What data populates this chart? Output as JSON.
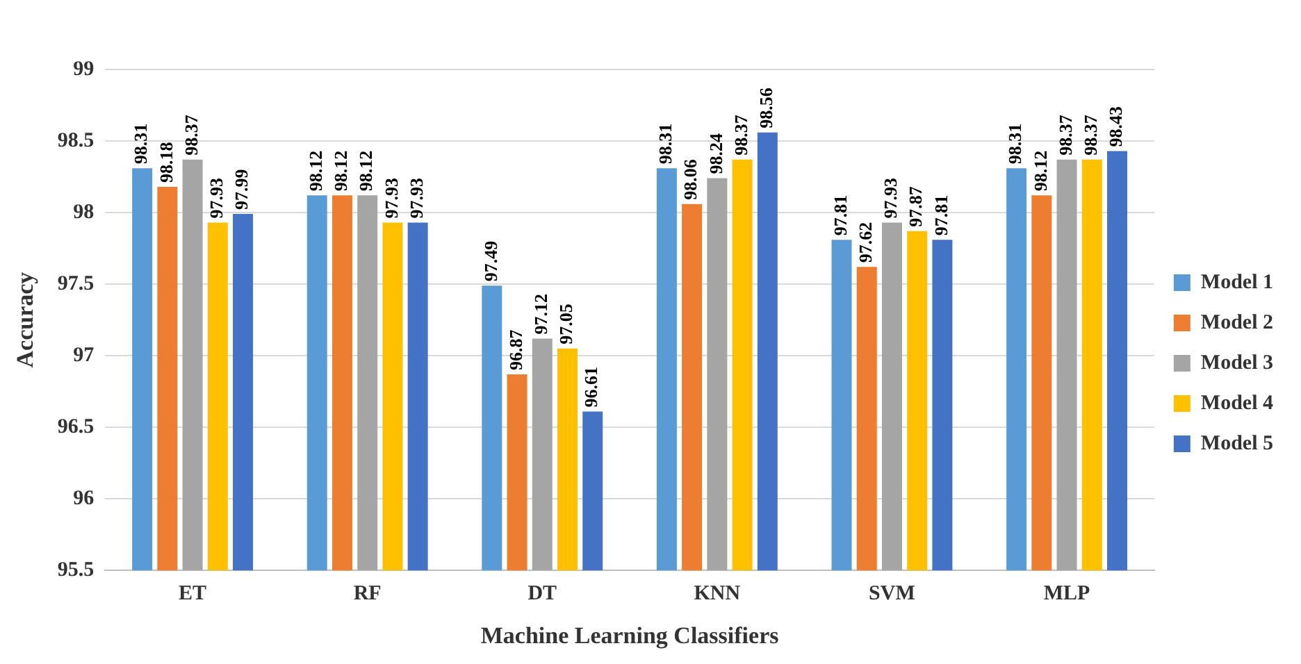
{
  "chart_data": {
    "type": "bar",
    "xlabel": "Machine Learning Classifiers",
    "ylabel": "Accuracy",
    "categories": [
      "ET",
      "RF",
      "DT",
      "KNN",
      "SVM",
      "MLP"
    ],
    "series": [
      {
        "name": "Model 1",
        "color": "#5b9bd5",
        "values": [
          98.31,
          98.12,
          97.49,
          98.31,
          97.81,
          98.31
        ]
      },
      {
        "name": "Model 2",
        "color": "#ed7d31",
        "values": [
          98.18,
          98.12,
          96.87,
          98.06,
          97.62,
          98.12
        ]
      },
      {
        "name": "Model 3",
        "color": "#a5a5a5",
        "values": [
          98.37,
          98.12,
          97.12,
          98.24,
          97.93,
          98.37
        ]
      },
      {
        "name": "Model 4",
        "color": "#ffc000",
        "values": [
          97.93,
          97.93,
          97.05,
          98.37,
          97.87,
          98.37
        ]
      },
      {
        "name": "Model 5",
        "color": "#4472c4",
        "values": [
          97.99,
          97.93,
          96.61,
          98.56,
          97.81,
          98.43
        ]
      }
    ],
    "ylim": [
      95.5,
      99
    ],
    "yticks": [
      95.5,
      96,
      96.5,
      97,
      97.5,
      98,
      98.5,
      99
    ],
    "grid": "y",
    "legend": "right",
    "data_labels": true
  }
}
